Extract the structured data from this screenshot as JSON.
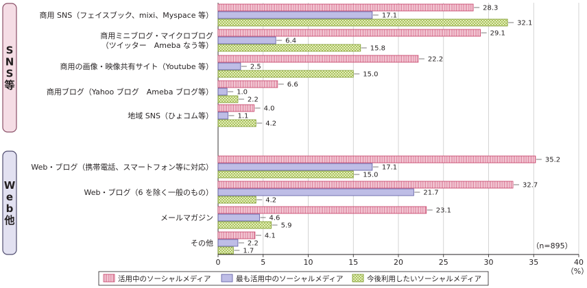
{
  "chart_data": {
    "type": "bar",
    "orientation": "horizontal",
    "sections": [
      {
        "label": "SNS等",
        "color": "#f5dde5",
        "border": "#8a5068"
      },
      {
        "label": "Web他",
        "color": "#e2e1f1",
        "border": "#4f4c6f"
      }
    ],
    "categories": [
      [
        "商用 SNS（フェイスブック、mixi、Myspace 等）"
      ],
      [
        "商用ミニブログ・マイクロブログ",
        "（ツイッター　Ameba なう等）"
      ],
      [
        "商用の画像・映像共有サイト（Youtube 等）"
      ],
      [
        "商用ブログ（Yahoo ブログ　Ameba ブログ等）"
      ],
      [
        "地域 SNS（ひょコム等）"
      ],
      [
        "Web・ブログ（携帯電話、スマートフォン等に対応）"
      ],
      [
        "Web・ブログ（6 を除く一般のもの）"
      ],
      [
        "メールマガジン"
      ],
      [
        "その他"
      ]
    ],
    "category_section": [
      0,
      0,
      0,
      0,
      0,
      1,
      1,
      1,
      1
    ],
    "series": [
      {
        "name": "活用中のソーシャルメディア",
        "fill": "#f4b5c6",
        "stroke": "#c43a63",
        "pattern": "vertical-lines",
        "values": [
          28.3,
          29.1,
          22.2,
          6.6,
          4.0,
          35.2,
          32.7,
          23.1,
          4.1
        ]
      },
      {
        "name": "最も活用中のソーシャルメディア",
        "fill": "#bebde6",
        "stroke": "#5a57a0",
        "pattern": "solid",
        "values": [
          17.1,
          6.4,
          2.5,
          1.0,
          1.1,
          17.1,
          21.7,
          4.6,
          2.2
        ]
      },
      {
        "name": "今後利用したいソーシャルメディア",
        "fill": "#e4efb0",
        "stroke": "#7d9a2b",
        "pattern": "crosshatch",
        "values": [
          32.1,
          15.8,
          15.0,
          2.2,
          4.2,
          15.0,
          4.2,
          5.9,
          1.7
        ]
      }
    ],
    "value_labels": [
      [
        "28.3",
        "29.1",
        "22.2",
        "6.6",
        "4.0",
        "35.2",
        "32.7",
        "23.1",
        "4.1"
      ],
      [
        "17.1",
        "6.4",
        "2.5",
        "1.0",
        "1.1",
        "17.1",
        "21.7",
        "4.6",
        "2.2"
      ],
      [
        "32.1",
        "15.8",
        "15.0",
        "2.2",
        "4.2",
        "15.0",
        "4.2",
        "5.9",
        "1.7"
      ]
    ],
    "xlim": [
      0,
      40
    ],
    "xticks": [
      "0",
      "5",
      "10",
      "15",
      "20",
      "25",
      "30",
      "35",
      "40"
    ],
    "xunit": "（%）",
    "note": "（n=895）",
    "legend_position": "bottom"
  }
}
